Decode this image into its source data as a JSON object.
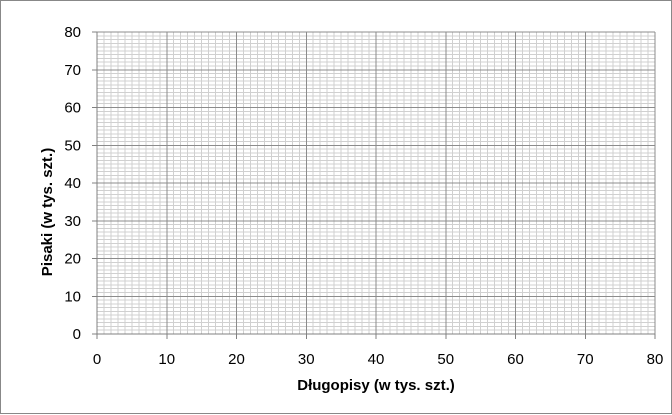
{
  "chart_data": {
    "type": "scatter",
    "title": "",
    "xlabel": "Długopisy (w tys. szt.)",
    "ylabel": "Pisaki (w tys. szt.)",
    "xlim": [
      0,
      80
    ],
    "ylim": [
      0,
      80
    ],
    "x_ticks": [
      0,
      10,
      20,
      30,
      40,
      50,
      60,
      70,
      80
    ],
    "y_ticks": [
      0,
      10,
      20,
      30,
      40,
      50,
      60,
      70,
      80
    ],
    "major_grid_step": 10,
    "minor_grid_step": 1,
    "grid": true,
    "series": [],
    "colors": {
      "major_grid": "#8c8c8c",
      "minor_grid": "#d0d0d0",
      "axis": "#808080"
    }
  }
}
